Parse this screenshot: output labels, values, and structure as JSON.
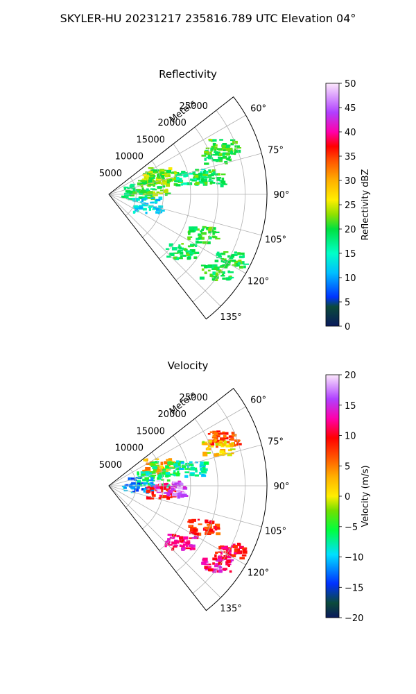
{
  "figure": {
    "suptitle": "SKYLER-HU  20231217  235816.789 UTC Elevation 04°"
  },
  "chart_data": [
    {
      "type": "heatmap",
      "projection": "polar-sector",
      "title": "Reflectivity",
      "radial_label": "Meters",
      "radial_ticks": [
        "5000",
        "10000",
        "15000",
        "20000",
        "25000"
      ],
      "radial_range": [
        0,
        29000
      ],
      "angle_ticks": [
        "60°",
        "75°",
        "90°",
        "105°",
        "120°",
        "135°"
      ],
      "angle_range_deg": [
        52,
        142
      ],
      "grid": true,
      "colorbar": {
        "label": "Reflectivity dBZ",
        "range": [
          0,
          50
        ],
        "ticks": [
          "0",
          "5",
          "10",
          "15",
          "20",
          "25",
          "30",
          "35",
          "40",
          "45",
          "50"
        ]
      },
      "echo_regions": [
        {
          "azimuth_deg": 67,
          "range_m": 22500,
          "value": 21
        },
        {
          "azimuth_deg": 70,
          "range_m": 21000,
          "value": 20
        },
        {
          "azimuth_deg": 67,
          "range_m": 9500,
          "value": 24
        },
        {
          "azimuth_deg": 72,
          "range_m": 10500,
          "value": 22
        },
        {
          "azimuth_deg": 80,
          "range_m": 8000,
          "value": 22
        },
        {
          "azimuth_deg": 82,
          "range_m": 5000,
          "value": 20
        },
        {
          "azimuth_deg": 77,
          "range_m": 15000,
          "value": 17
        },
        {
          "azimuth_deg": 80,
          "range_m": 18500,
          "value": 20
        },
        {
          "azimuth_deg": 105,
          "range_m": 7000,
          "value": 13
        },
        {
          "azimuth_deg": 113,
          "range_m": 18500,
          "value": 20
        },
        {
          "azimuth_deg": 118,
          "range_m": 25000,
          "value": 20
        },
        {
          "azimuth_deg": 126,
          "range_m": 24000,
          "value": 20
        },
        {
          "azimuth_deg": 128,
          "range_m": 16500,
          "value": 20
        }
      ]
    },
    {
      "type": "heatmap",
      "projection": "polar-sector",
      "title": "Velocity",
      "radial_label": "Meters",
      "radial_ticks": [
        "5000",
        "10000",
        "15000",
        "20000",
        "25000"
      ],
      "radial_range": [
        0,
        29000
      ],
      "angle_ticks": [
        "60°",
        "75°",
        "90°",
        "105°",
        "120°",
        "135°"
      ],
      "angle_range_deg": [
        52,
        142
      ],
      "grid": true,
      "colorbar": {
        "label": "Velocity (m/s)",
        "range": [
          -20,
          20
        ],
        "ticks": [
          "−20",
          "−15",
          "−10",
          "−5",
          "0",
          "5",
          "10",
          "15",
          "20"
        ]
      },
      "echo_regions": [
        {
          "azimuth_deg": 67,
          "range_m": 22500,
          "value": 7
        },
        {
          "azimuth_deg": 70,
          "range_m": 21000,
          "value": 1
        },
        {
          "azimuth_deg": 67,
          "range_m": 9500,
          "value": 3
        },
        {
          "azimuth_deg": 72,
          "range_m": 10500,
          "value": -5
        },
        {
          "azimuth_deg": 80,
          "range_m": 8000,
          "value": -7
        },
        {
          "azimuth_deg": 86,
          "range_m": 5000,
          "value": -12
        },
        {
          "azimuth_deg": 77,
          "range_m": 15000,
          "value": -8
        },
        {
          "azimuth_deg": 95,
          "range_m": 9500,
          "value": 10
        },
        {
          "azimuth_deg": 92,
          "range_m": 11000,
          "value": 17
        },
        {
          "azimuth_deg": 113,
          "range_m": 18500,
          "value": 8
        },
        {
          "azimuth_deg": 118,
          "range_m": 25000,
          "value": 10
        },
        {
          "azimuth_deg": 126,
          "range_m": 24000,
          "value": 12
        },
        {
          "azimuth_deg": 128,
          "range_m": 16500,
          "value": 12
        }
      ]
    }
  ]
}
